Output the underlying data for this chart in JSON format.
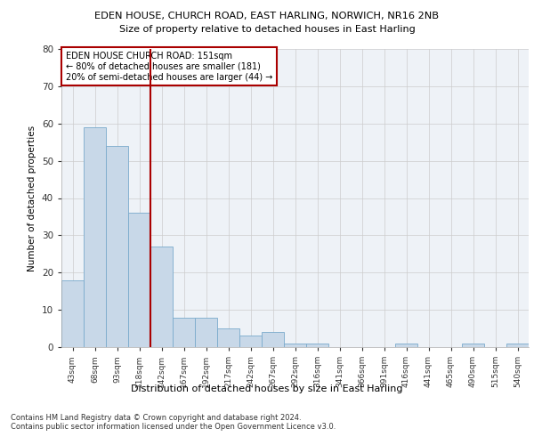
{
  "title1": "EDEN HOUSE, CHURCH ROAD, EAST HARLING, NORWICH, NR16 2NB",
  "title2": "Size of property relative to detached houses in East Harling",
  "xlabel": "Distribution of detached houses by size in East Harling",
  "ylabel": "Number of detached properties",
  "categories": [
    "43sqm",
    "68sqm",
    "93sqm",
    "118sqm",
    "142sqm",
    "167sqm",
    "192sqm",
    "217sqm",
    "242sqm",
    "267sqm",
    "292sqm",
    "316sqm",
    "341sqm",
    "366sqm",
    "391sqm",
    "416sqm",
    "441sqm",
    "465sqm",
    "490sqm",
    "515sqm",
    "540sqm"
  ],
  "values": [
    18,
    59,
    54,
    36,
    27,
    8,
    8,
    5,
    3,
    4,
    1,
    1,
    0,
    0,
    0,
    1,
    0,
    0,
    1,
    0,
    1
  ],
  "bar_color": "#c8d8e8",
  "bar_edge_color": "#7aaacc",
  "grid_color": "#cccccc",
  "vline_color": "#aa0000",
  "annotation_text": "EDEN HOUSE CHURCH ROAD: 151sqm\n← 80% of detached houses are smaller (181)\n20% of semi-detached houses are larger (44) →",
  "annotation_box_color": "#ffffff",
  "annotation_box_edge": "#aa0000",
  "ylim": [
    0,
    80
  ],
  "yticks": [
    0,
    10,
    20,
    30,
    40,
    50,
    60,
    70,
    80
  ],
  "footer": "Contains HM Land Registry data © Crown copyright and database right 2024.\nContains public sector information licensed under the Open Government Licence v3.0.",
  "background_color": "#ffffff",
  "plot_background": "#eef2f7"
}
